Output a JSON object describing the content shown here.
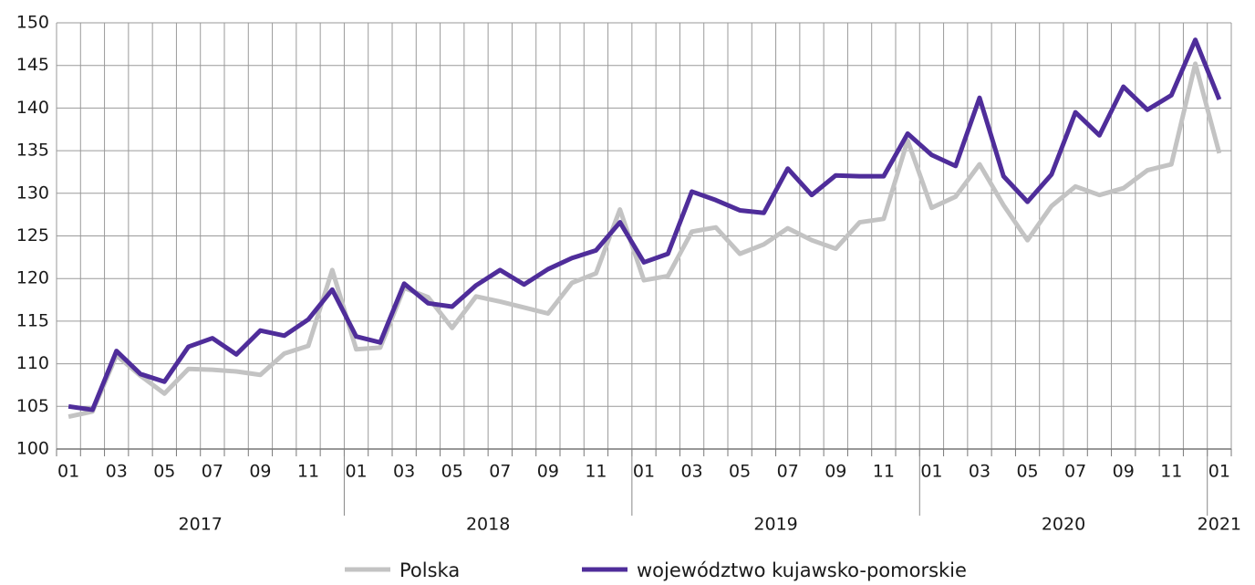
{
  "chart_data": {
    "type": "line",
    "categories": [
      "01",
      null,
      "03",
      null,
      "05",
      null,
      "07",
      null,
      "09",
      null,
      "11",
      null,
      "01",
      null,
      "03",
      null,
      "05",
      null,
      "07",
      null,
      "09",
      null,
      "11",
      null,
      "01",
      null,
      "03",
      null,
      "05",
      null,
      "07",
      null,
      "09",
      null,
      "11",
      null,
      "01",
      null,
      "03",
      null,
      "05",
      null,
      "07",
      null,
      "09",
      null,
      "11",
      null,
      "01"
    ],
    "years": [
      "2017",
      "2018",
      "2019",
      "2020",
      "2021"
    ],
    "series": [
      {
        "name": "Polska",
        "color": "#c3c3c3",
        "values": [
          103.8,
          104.4,
          111.0,
          108.6,
          106.5,
          109.4,
          109.3,
          109.1,
          108.7,
          111.2,
          112.1,
          121.0,
          111.7,
          111.9,
          118.9,
          117.8,
          114.2,
          117.9,
          117.3,
          116.6,
          115.9,
          119.5,
          120.6,
          128.1,
          119.8,
          120.3,
          125.5,
          126.0,
          122.9,
          124.0,
          125.9,
          124.5,
          123.5,
          126.6,
          127.0,
          136.2,
          128.3,
          129.6,
          133.4,
          128.6,
          124.5,
          128.5,
          130.8,
          129.8,
          130.6,
          132.7,
          133.4,
          145.2,
          134.7
        ]
      },
      {
        "name": "województwo kujawsko-pomorskie",
        "color": "#4f2d9a",
        "values": [
          105.0,
          104.6,
          111.5,
          108.8,
          107.9,
          112.0,
          113.0,
          111.1,
          113.9,
          113.3,
          115.2,
          118.7,
          113.2,
          112.5,
          119.4,
          117.1,
          116.7,
          119.2,
          121.0,
          119.3,
          121.1,
          122.4,
          123.3,
          126.6,
          121.9,
          122.9,
          130.2,
          129.2,
          128.0,
          127.7,
          132.9,
          129.8,
          132.1,
          132.0,
          132.0,
          137.0,
          134.5,
          133.2,
          141.2,
          132.0,
          129.0,
          132.2,
          139.5,
          136.8,
          142.5,
          139.8,
          141.5,
          148.0,
          141.0
        ]
      }
    ],
    "ylim": [
      100,
      150
    ],
    "yticks": [
      100,
      105,
      110,
      115,
      120,
      125,
      130,
      135,
      140,
      145,
      150
    ],
    "grid": true,
    "legend": "bottom"
  }
}
